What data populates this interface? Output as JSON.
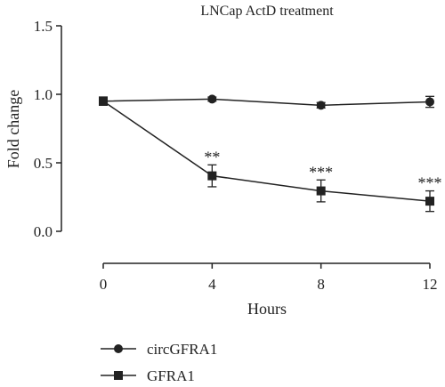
{
  "chart_data": {
    "type": "line",
    "title": "LNCap ActD treatment",
    "xlabel": "Hours",
    "ylabel": "Fold change",
    "x": [
      0,
      4,
      8,
      12
    ],
    "xlim": [
      0,
      12
    ],
    "ylim": [
      0,
      1.5
    ],
    "xticks": [
      "0",
      "4",
      "8",
      "12"
    ],
    "yticks": [
      "0.0",
      "0.5",
      "1.0",
      "1.5"
    ],
    "grid": false,
    "legend_position": "bottom-left",
    "series": [
      {
        "name": "circGFRA1",
        "marker": "circle",
        "values": [
          0.95,
          0.965,
          0.92,
          0.945
        ],
        "errors": [
          0.03,
          0.015,
          0.02,
          0.04
        ],
        "annotations": [
          "",
          "",
          "",
          ""
        ]
      },
      {
        "name": "GFRA1",
        "marker": "square",
        "values": [
          0.95,
          0.405,
          0.295,
          0.22
        ],
        "errors": [
          0.03,
          0.08,
          0.08,
          0.075
        ],
        "annotations": [
          "",
          "**",
          "***",
          "***"
        ]
      }
    ]
  }
}
